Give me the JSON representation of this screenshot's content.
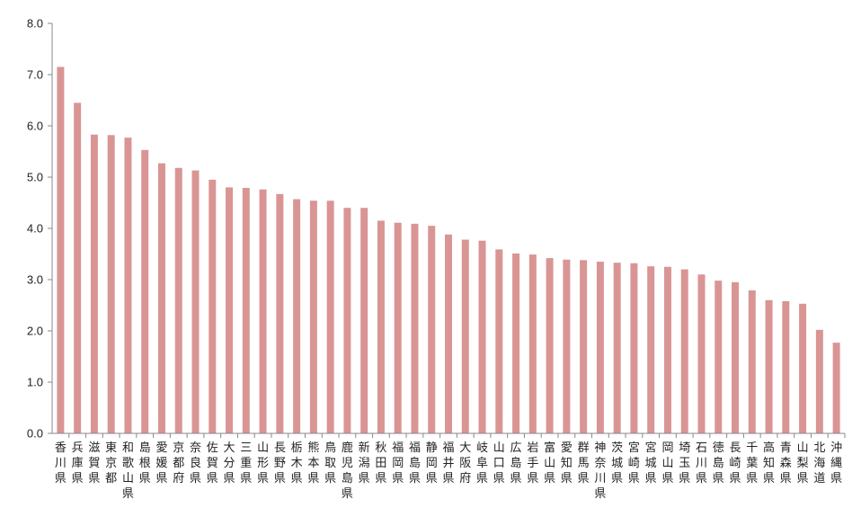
{
  "colors": {
    "bar": "#d99594",
    "axis": "#888888",
    "text": "#222222"
  },
  "chart_data": {
    "type": "bar",
    "title": "",
    "xlabel": "",
    "ylabel": "",
    "ylim": [
      0,
      8
    ],
    "yticks": [
      "0.0",
      "1.0",
      "2.0",
      "3.0",
      "4.0",
      "5.0",
      "6.0",
      "7.0",
      "8.0"
    ],
    "grid": false,
    "categories": [
      "香川県",
      "兵庫県",
      "滋賀県",
      "東京都",
      "和歌山県",
      "島根県",
      "愛媛県",
      "京都府",
      "奈良県",
      "佐賀県",
      "大分県",
      "三重県",
      "山形県",
      "長野県",
      "栃木県",
      "熊本県",
      "鳥取県",
      "鹿児島県",
      "新潟県",
      "秋田県",
      "福岡県",
      "福島県",
      "静岡県",
      "福井県",
      "大阪府",
      "岐阜県",
      "山口県",
      "広島県",
      "岩手県",
      "富山県",
      "愛知県",
      "群馬県",
      "神奈川県",
      "茨城県",
      "宮崎県",
      "宮城県",
      "岡山県",
      "埼玉県",
      "石川県",
      "徳島県",
      "長崎県",
      "千葉県",
      "高知県",
      "青森県",
      "山梨県",
      "北海道",
      "沖縄県"
    ],
    "values": [
      7.15,
      6.45,
      5.83,
      5.82,
      5.77,
      5.53,
      5.27,
      5.18,
      5.13,
      4.95,
      4.8,
      4.79,
      4.76,
      4.67,
      4.57,
      4.54,
      4.54,
      4.4,
      4.4,
      4.15,
      4.11,
      4.09,
      4.05,
      3.88,
      3.78,
      3.76,
      3.59,
      3.51,
      3.49,
      3.42,
      3.39,
      3.38,
      3.35,
      3.33,
      3.32,
      3.26,
      3.25,
      3.2,
      3.1,
      2.98,
      2.95,
      2.79,
      2.6,
      2.58,
      2.53,
      2.02,
      1.77
    ]
  }
}
